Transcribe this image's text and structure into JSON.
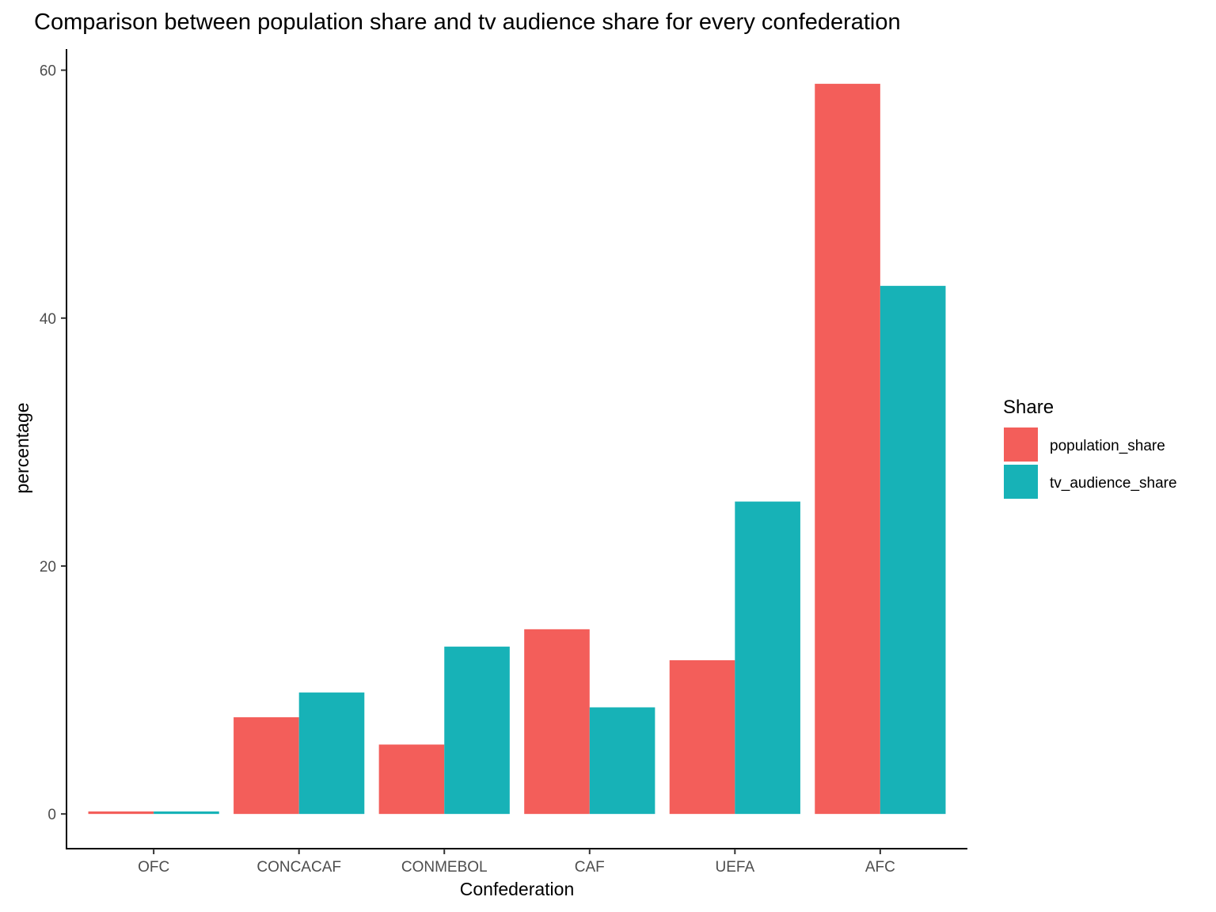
{
  "chart_data": {
    "type": "bar",
    "title": "Comparison between population share and tv audience share for every confederation",
    "xlabel": "Confederation",
    "ylabel": "percentage",
    "categories": [
      "OFC",
      "CONCACAF",
      "CONMEBOL",
      "CAF",
      "UEFA",
      "AFC"
    ],
    "series": [
      {
        "name": "population_share",
        "color": "#F35E5A",
        "values": [
          0.2,
          7.8,
          5.6,
          14.9,
          12.4,
          58.9
        ]
      },
      {
        "name": "tv_audience_share",
        "color": "#17B2B7",
        "values": [
          0.2,
          9.8,
          13.5,
          8.6,
          25.2,
          42.6
        ]
      }
    ],
    "ylim": [
      -2.8,
      61.7
    ],
    "yticks": [
      0,
      20,
      40,
      60
    ],
    "grid": false,
    "legend": {
      "title": "Share",
      "position": "right"
    }
  }
}
